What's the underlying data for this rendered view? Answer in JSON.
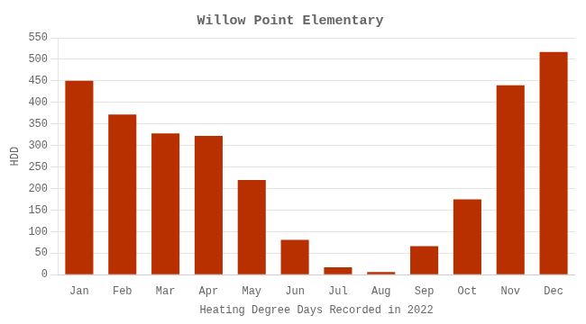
{
  "chart_data": {
    "type": "bar",
    "title": "Willow Point Elementary",
    "xlabel": "Heating Degree Days Recorded in 2022",
    "ylabel": "HDD",
    "categories": [
      "Jan",
      "Feb",
      "Mar",
      "Apr",
      "May",
      "Jun",
      "Jul",
      "Aug",
      "Sep",
      "Oct",
      "Nov",
      "Dec"
    ],
    "values": [
      450,
      372,
      328,
      322,
      220,
      81,
      17,
      6,
      66,
      175,
      440,
      517
    ],
    "color": "#b83000",
    "ylim": [
      0,
      550
    ],
    "yticks": [
      0,
      50,
      100,
      150,
      200,
      250,
      300,
      350,
      400,
      450,
      500,
      550
    ],
    "grid": true
  }
}
